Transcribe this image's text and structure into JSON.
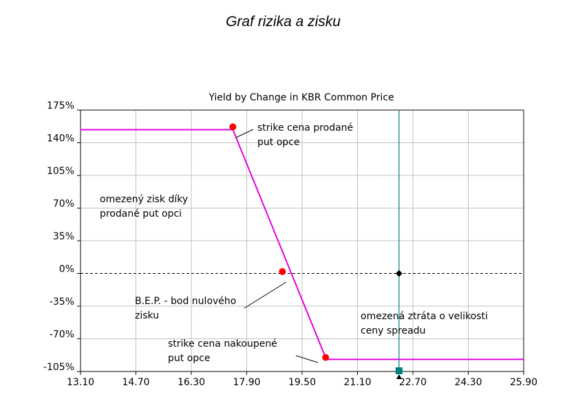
{
  "page_title": "Graf rizika a zisku",
  "chart_data": {
    "type": "line",
    "title": "Yield by Change in KBR Common Price",
    "xlabel": "",
    "ylabel": "",
    "xlim": [
      13.1,
      25.9
    ],
    "ylim": [
      -105,
      175
    ],
    "x_ticks": [
      "13.10",
      "14.70",
      "16.30",
      "17.90",
      "19.50",
      "21.10",
      "22.70",
      "24.30",
      "25.90"
    ],
    "x_tick_values": [
      13.1,
      14.7,
      16.3,
      17.9,
      19.5,
      21.1,
      22.7,
      24.3,
      25.9
    ],
    "y_ticks": [
      "175%",
      "140%",
      "105%",
      "70%",
      "35%",
      "0%",
      "-35%",
      "-70%",
      "-105%"
    ],
    "y_tick_values": [
      175,
      140,
      105,
      70,
      35,
      0,
      -35,
      -70,
      -105
    ],
    "grid": true,
    "colors": {
      "series": "#e000e0",
      "marker": "#ff0000",
      "vertical_line": "#008080",
      "current_point": "#000000",
      "zero_line": "#000000",
      "grid": "#c0c0c0"
    },
    "series": [
      {
        "x": [
          13.1,
          17.5,
          20.2,
          25.9
        ],
        "y": [
          154,
          154,
          -92,
          -92
        ]
      }
    ],
    "markers": [
      {
        "x": 17.5,
        "y": 157
      },
      {
        "x": 18.93,
        "y": 2
      },
      {
        "x": 20.18,
        "y": -90
      }
    ],
    "current_price_x": 22.3,
    "current_point": {
      "x": 22.3,
      "y": 0
    },
    "annotations": {
      "strike_sold": [
        "strike cena prodané",
        "put opce"
      ],
      "limited_profit": [
        "omezený zisk díky",
        "prodané put opci"
      ],
      "bep": [
        "B.E.P. - bod nulového",
        "zisku"
      ],
      "limited_loss": [
        "omezená ztráta o velikosti",
        "ceny spreadu"
      ],
      "strike_bought": [
        "strike cena nakoupené",
        "put opce"
      ]
    }
  }
}
